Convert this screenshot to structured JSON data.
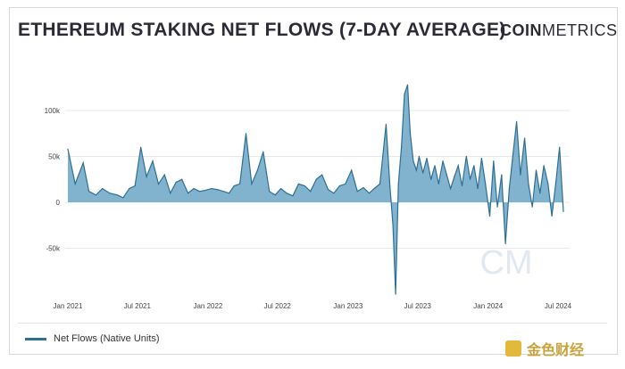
{
  "title": "ETHEREUM STAKING NET FLOWS (7-DAY AVERAGE)",
  "brand": {
    "bold": "COIN",
    "regular": "METRICS"
  },
  "watermark": "CM",
  "footer_watermark": "金色财经",
  "colors": {
    "line": "#2e6f96",
    "fill": "#6ba6c6",
    "text": "#2b2b38",
    "grid": "#e9e9e9"
  },
  "chart_data": {
    "type": "area",
    "title": "ETHEREUM STAKING NET FLOWS (7-DAY AVERAGE)",
    "xlabel": "",
    "ylabel": "",
    "ylim": [
      -100000,
      135000
    ],
    "yticks": [
      {
        "value": 100000,
        "label": "100k"
      },
      {
        "value": 50000,
        "label": "50k"
      },
      {
        "value": 0,
        "label": "0"
      },
      {
        "value": -50000,
        "label": "-50k"
      }
    ],
    "xticks": [
      {
        "value": "2021-01-01",
        "label": "Jan 2021"
      },
      {
        "value": "2021-07-01",
        "label": "Jul 2021"
      },
      {
        "value": "2022-01-01",
        "label": "Jan 2022"
      },
      {
        "value": "2022-07-01",
        "label": "Jul 2022"
      },
      {
        "value": "2023-01-01",
        "label": "Jan 2023"
      },
      {
        "value": "2023-07-01",
        "label": "Jul 2023"
      },
      {
        "value": "2024-01-01",
        "label": "Jan 2024"
      },
      {
        "value": "2024-07-01",
        "label": "Jul 2024"
      }
    ],
    "grid": "horizontal",
    "legend": "bottom-left",
    "series": [
      {
        "name": "Net Flows (Native Units)",
        "x": [
          "2021-01-01",
          "2021-01-20",
          "2021-02-10",
          "2021-02-25",
          "2021-03-15",
          "2021-04-01",
          "2021-04-20",
          "2021-05-10",
          "2021-05-25",
          "2021-06-10",
          "2021-06-25",
          "2021-07-10",
          "2021-07-25",
          "2021-08-10",
          "2021-08-25",
          "2021-09-10",
          "2021-09-25",
          "2021-10-10",
          "2021-10-25",
          "2021-11-10",
          "2021-11-25",
          "2021-12-10",
          "2021-12-25",
          "2022-01-10",
          "2022-01-25",
          "2022-02-10",
          "2022-02-25",
          "2022-03-10",
          "2022-03-25",
          "2022-04-10",
          "2022-04-25",
          "2022-05-10",
          "2022-05-25",
          "2022-06-10",
          "2022-06-25",
          "2022-07-10",
          "2022-07-25",
          "2022-08-10",
          "2022-08-25",
          "2022-09-10",
          "2022-09-25",
          "2022-10-10",
          "2022-10-25",
          "2022-11-10",
          "2022-11-25",
          "2022-12-10",
          "2022-12-25",
          "2023-01-10",
          "2023-01-25",
          "2023-02-10",
          "2023-02-25",
          "2023-03-10",
          "2023-03-25",
          "2023-04-10",
          "2023-04-20",
          "2023-04-28",
          "2023-05-05",
          "2023-05-12",
          "2023-05-20",
          "2023-05-28",
          "2023-06-05",
          "2023-06-12",
          "2023-06-20",
          "2023-06-28",
          "2023-07-05",
          "2023-07-15",
          "2023-07-25",
          "2023-08-05",
          "2023-08-15",
          "2023-08-25",
          "2023-09-05",
          "2023-09-15",
          "2023-09-25",
          "2023-10-05",
          "2023-10-15",
          "2023-10-25",
          "2023-11-05",
          "2023-11-15",
          "2023-11-25",
          "2023-12-05",
          "2023-12-15",
          "2023-12-25",
          "2024-01-05",
          "2024-01-15",
          "2024-01-25",
          "2024-02-05",
          "2024-02-15",
          "2024-02-25",
          "2024-03-05",
          "2024-03-15",
          "2024-03-25",
          "2024-04-05",
          "2024-04-15",
          "2024-04-25",
          "2024-05-05",
          "2024-05-15",
          "2024-05-25",
          "2024-06-05",
          "2024-06-15",
          "2024-06-25",
          "2024-07-05",
          "2024-07-15"
        ],
        "values": [
          58000,
          20000,
          43000,
          12000,
          8000,
          15000,
          10000,
          8000,
          5000,
          15000,
          18000,
          60000,
          28000,
          45000,
          20000,
          30000,
          10000,
          22000,
          25000,
          10000,
          15000,
          12000,
          13000,
          15000,
          14000,
          12000,
          10000,
          18000,
          20000,
          75000,
          20000,
          35000,
          55000,
          12000,
          8000,
          15000,
          10000,
          7000,
          20000,
          18000,
          12000,
          25000,
          30000,
          14000,
          10000,
          18000,
          20000,
          35000,
          12000,
          16000,
          10000,
          15000,
          20000,
          85000,
          18000,
          -25000,
          -100000,
          20000,
          60000,
          118000,
          128000,
          75000,
          45000,
          35000,
          50000,
          32000,
          48000,
          25000,
          40000,
          20000,
          45000,
          30000,
          15000,
          28000,
          40000,
          18000,
          50000,
          25000,
          40000,
          15000,
          48000,
          20000,
          -15000,
          45000,
          -5000,
          30000,
          -45000,
          15000,
          50000,
          88000,
          30000,
          70000,
          20000,
          -5000,
          35000,
          10000,
          40000,
          20000,
          -15000,
          20000,
          60000,
          -10000
        ]
      }
    ]
  }
}
